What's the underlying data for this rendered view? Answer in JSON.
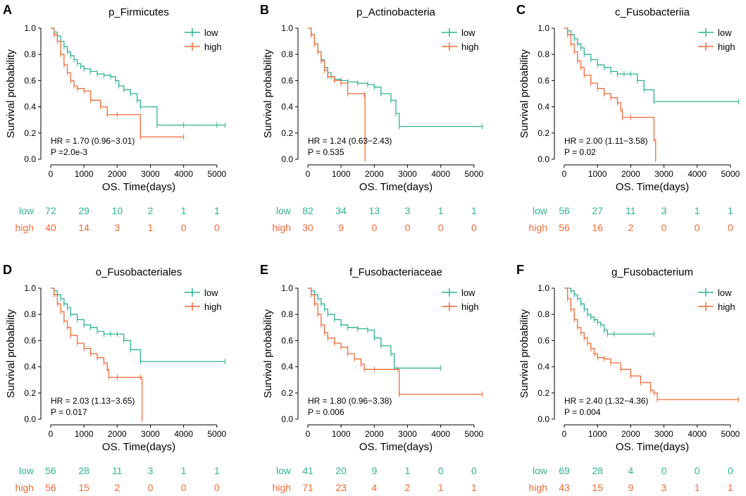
{
  "colors": {
    "low": "#2fb392",
    "high": "#f06b3a",
    "axis": "#000000"
  },
  "chart_data": [
    {
      "type": "line",
      "panel_label": "A",
      "title": "p_Firmicutes",
      "xlabel": "OS. Time(days)",
      "ylabel": "Survival probability",
      "xlim": [
        0,
        5300
      ],
      "ylim": [
        0,
        1
      ],
      "xticks": [
        "0",
        "1000",
        "2000",
        "3000",
        "4000",
        "5000"
      ],
      "yticks": [
        "0.0",
        "0.2",
        "0.4",
        "0.6",
        "0.8",
        "1.0"
      ],
      "legend": [
        "low",
        "high"
      ],
      "hr_text": "HR = 1.70 (0.96−3.01)",
      "p_text": "P =2.0e-3",
      "risk_table": {
        "low": [
          "72",
          "29",
          "10",
          "2",
          "1",
          "1"
        ],
        "high": [
          "40",
          "14",
          "3",
          "1",
          "0",
          "0"
        ]
      },
      "series": [
        {
          "name": "low",
          "x": [
            0,
            100,
            200,
            300,
            400,
            500,
            600,
            700,
            800,
            900,
            1000,
            1200,
            1400,
            1600,
            1800,
            1950,
            2050,
            2200,
            2400,
            2600,
            2700,
            3200,
            4000,
            5000,
            5250
          ],
          "y": [
            1.0,
            0.97,
            0.94,
            0.9,
            0.86,
            0.82,
            0.79,
            0.76,
            0.73,
            0.71,
            0.69,
            0.67,
            0.65,
            0.64,
            0.63,
            0.6,
            0.56,
            0.53,
            0.5,
            0.45,
            0.4,
            0.26,
            0.26,
            0.26,
            0.26
          ]
        },
        {
          "name": "high",
          "x": [
            0,
            100,
            200,
            300,
            400,
            500,
            600,
            700,
            800,
            1000,
            1200,
            1500,
            1700,
            2000,
            2700,
            4000
          ],
          "y": [
            1.0,
            0.95,
            0.9,
            0.8,
            0.72,
            0.66,
            0.6,
            0.56,
            0.54,
            0.52,
            0.45,
            0.4,
            0.34,
            0.34,
            0.17,
            0.17
          ]
        }
      ]
    },
    {
      "type": "line",
      "panel_label": "B",
      "title": "p_Actinobacteria",
      "xlabel": "OS. Time(days)",
      "ylabel": "Survival probability",
      "xlim": [
        0,
        5300
      ],
      "ylim": [
        0,
        1
      ],
      "xticks": [
        "0",
        "1000",
        "2000",
        "3000",
        "4000",
        "5000"
      ],
      "yticks": [
        "0.0",
        "0.2",
        "0.4",
        "0.6",
        "0.8",
        "1.0"
      ],
      "legend": [
        "low",
        "high"
      ],
      "hr_text": "HR = 1.24 (0.63−2.43)",
      "p_text": "P = 0.535",
      "risk_table": {
        "low": [
          "82",
          "34",
          "13",
          "3",
          "1",
          "1"
        ],
        "high": [
          "30",
          "9",
          "0",
          "0",
          "0",
          "0"
        ]
      },
      "series": [
        {
          "name": "low",
          "x": [
            0,
            100,
            200,
            300,
            400,
            500,
            600,
            700,
            800,
            1000,
            1200,
            1500,
            1800,
            2000,
            2200,
            2500,
            2650,
            2750,
            5250
          ],
          "y": [
            1.0,
            0.95,
            0.88,
            0.82,
            0.76,
            0.7,
            0.66,
            0.63,
            0.61,
            0.6,
            0.59,
            0.58,
            0.57,
            0.55,
            0.5,
            0.45,
            0.35,
            0.25,
            0.25
          ]
        },
        {
          "name": "high",
          "x": [
            0,
            100,
            200,
            300,
            400,
            500,
            600,
            800,
            1000,
            1200,
            1700,
            1720
          ],
          "y": [
            1.0,
            0.95,
            0.88,
            0.82,
            0.75,
            0.68,
            0.63,
            0.6,
            0.58,
            0.5,
            0.49,
            0.0
          ]
        }
      ]
    },
    {
      "type": "line",
      "panel_label": "C",
      "title": "c_Fusobacteriia",
      "xlabel": "OS. Time(days)",
      "ylabel": "Survival probability",
      "xlim": [
        0,
        5300
      ],
      "ylim": [
        0,
        1
      ],
      "xticks": [
        "0",
        "1000",
        "2000",
        "3000",
        "4000",
        "5000"
      ],
      "yticks": [
        "0.0",
        "0.2",
        "0.4",
        "0.6",
        "0.8",
        "1.0"
      ],
      "legend": [
        "low",
        "high"
      ],
      "hr_text": "HR = 2.00 (1.11−3.58)",
      "p_text": "P = 0.02",
      "risk_table": {
        "low": [
          "56",
          "27",
          "11",
          "3",
          "1",
          "1"
        ],
        "high": [
          "56",
          "16",
          "2",
          "0",
          "0",
          "0"
        ]
      },
      "series": [
        {
          "name": "low",
          "x": [
            0,
            100,
            200,
            300,
            400,
            500,
            600,
            800,
            1000,
            1200,
            1400,
            1600,
            1800,
            2000,
            2200,
            2400,
            2700,
            5250
          ],
          "y": [
            1.0,
            0.98,
            0.95,
            0.92,
            0.88,
            0.85,
            0.8,
            0.76,
            0.72,
            0.7,
            0.67,
            0.65,
            0.65,
            0.65,
            0.6,
            0.53,
            0.44,
            0.44
          ]
        },
        {
          "name": "high",
          "x": [
            0,
            100,
            200,
            300,
            400,
            500,
            600,
            800,
            1000,
            1200,
            1400,
            1600,
            1700,
            1750,
            2000,
            2700,
            2750
          ],
          "y": [
            1.0,
            0.95,
            0.88,
            0.82,
            0.75,
            0.7,
            0.64,
            0.58,
            0.54,
            0.5,
            0.47,
            0.43,
            0.38,
            0.32,
            0.32,
            0.15,
            0.0
          ]
        }
      ]
    },
    {
      "type": "line",
      "panel_label": "D",
      "title": "o_Fusobacteriales",
      "xlabel": "OS. Time(days)",
      "ylabel": "Survival probability",
      "xlim": [
        0,
        5300
      ],
      "ylim": [
        0,
        1
      ],
      "xticks": [
        "0",
        "1000",
        "2000",
        "3000",
        "4000",
        "5000"
      ],
      "yticks": [
        "0.0",
        "0.2",
        "0.4",
        "0.6",
        "0.8",
        "1.0"
      ],
      "legend": [
        "low",
        "high"
      ],
      "hr_text": "HR = 2.03 (1.13−3.65)",
      "p_text": "P = 0.017",
      "risk_table": {
        "low": [
          "56",
          "28",
          "11",
          "3",
          "1",
          "1"
        ],
        "high": [
          "56",
          "15",
          "2",
          "0",
          "0",
          "0"
        ]
      },
      "series": [
        {
          "name": "low",
          "x": [
            0,
            100,
            200,
            300,
            400,
            500,
            600,
            800,
            1000,
            1200,
            1400,
            1600,
            1800,
            2000,
            2200,
            2400,
            2700,
            5250
          ],
          "y": [
            1.0,
            0.98,
            0.95,
            0.92,
            0.88,
            0.85,
            0.8,
            0.76,
            0.72,
            0.7,
            0.67,
            0.65,
            0.65,
            0.65,
            0.6,
            0.53,
            0.44,
            0.44
          ]
        },
        {
          "name": "high",
          "x": [
            0,
            100,
            200,
            300,
            400,
            500,
            600,
            800,
            1000,
            1200,
            1400,
            1600,
            1700,
            1750,
            2000,
            2700,
            2750
          ],
          "y": [
            1.0,
            0.95,
            0.88,
            0.82,
            0.75,
            0.7,
            0.64,
            0.58,
            0.54,
            0.5,
            0.47,
            0.43,
            0.38,
            0.32,
            0.32,
            0.32,
            0.0
          ]
        }
      ]
    },
    {
      "type": "line",
      "panel_label": "E",
      "title": "f_Fusobacteriaceae",
      "xlabel": "OS. Time(days)",
      "ylabel": "Survival probability",
      "xlim": [
        0,
        5300
      ],
      "ylim": [
        0,
        1
      ],
      "xticks": [
        "0",
        "1000",
        "2000",
        "3000",
        "4000",
        "5000"
      ],
      "yticks": [
        "0.0",
        "0.2",
        "0.4",
        "0.6",
        "0.8",
        "1.0"
      ],
      "legend": [
        "low",
        "high"
      ],
      "hr_text": "HR = 1.80 (0.96−3.38)",
      "p_text": "P = 0.006",
      "risk_table": {
        "low": [
          "41",
          "20",
          "9",
          "1",
          "0",
          "0"
        ],
        "high": [
          "71",
          "23",
          "4",
          "2",
          "1",
          "1"
        ]
      },
      "series": [
        {
          "name": "low",
          "x": [
            0,
            100,
            200,
            300,
            400,
            500,
            600,
            800,
            1000,
            1200,
            1500,
            1800,
            2000,
            2200,
            2500,
            2600,
            4000
          ],
          "y": [
            1.0,
            0.98,
            0.95,
            0.92,
            0.88,
            0.84,
            0.8,
            0.76,
            0.72,
            0.7,
            0.69,
            0.68,
            0.62,
            0.56,
            0.5,
            0.39,
            0.39
          ]
        },
        {
          "name": "high",
          "x": [
            0,
            100,
            200,
            300,
            400,
            500,
            600,
            800,
            1000,
            1200,
            1400,
            1600,
            1700,
            2000,
            2700,
            2750,
            5250
          ],
          "y": [
            1.0,
            0.95,
            0.88,
            0.8,
            0.72,
            0.66,
            0.62,
            0.58,
            0.55,
            0.5,
            0.46,
            0.42,
            0.38,
            0.38,
            0.38,
            0.19,
            0.19
          ]
        }
      ]
    },
    {
      "type": "line",
      "panel_label": "F",
      "title": "g_Fusobacterium",
      "xlabel": "OS. Time(days)",
      "ylabel": "Survival probability",
      "xlim": [
        0,
        5300
      ],
      "ylim": [
        0,
        1
      ],
      "xticks": [
        "0",
        "1000",
        "2000",
        "3000",
        "4000",
        "5000"
      ],
      "yticks": [
        "0.0",
        "0.2",
        "0.4",
        "0.6",
        "0.8",
        "1.0"
      ],
      "legend": [
        "low",
        "high"
      ],
      "hr_text": "HR = 2.40 (1.32−4.36)",
      "p_text": "P = 0.004",
      "risk_table": {
        "low": [
          "69",
          "28",
          "4",
          "0",
          "0",
          "0"
        ],
        "high": [
          "43",
          "15",
          "9",
          "3",
          "1",
          "1"
        ]
      },
      "series": [
        {
          "name": "low",
          "x": [
            0,
            200,
            300,
            400,
            500,
            600,
            700,
            800,
            900,
            1000,
            1100,
            1200,
            1300,
            1500,
            2700
          ],
          "y": [
            1.0,
            0.98,
            0.95,
            0.92,
            0.88,
            0.84,
            0.8,
            0.78,
            0.76,
            0.74,
            0.72,
            0.68,
            0.65,
            0.65,
            0.65
          ]
        },
        {
          "name": "high",
          "x": [
            0,
            100,
            200,
            300,
            400,
            500,
            600,
            700,
            800,
            900,
            1000,
            1200,
            1400,
            1700,
            2000,
            2300,
            2600,
            2700,
            2800,
            5250
          ],
          "y": [
            1.0,
            0.92,
            0.84,
            0.76,
            0.7,
            0.66,
            0.62,
            0.58,
            0.54,
            0.5,
            0.47,
            0.46,
            0.43,
            0.38,
            0.33,
            0.28,
            0.22,
            0.2,
            0.15,
            0.15
          ]
        }
      ]
    }
  ]
}
